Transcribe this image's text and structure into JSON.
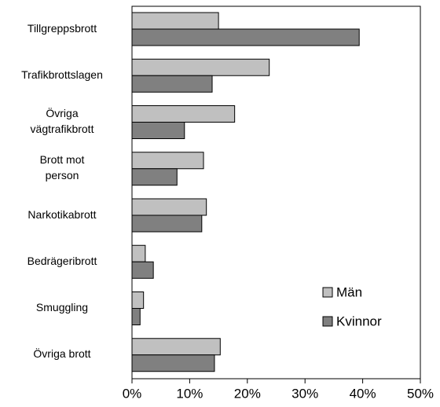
{
  "chart_data": {
    "type": "hbar",
    "categories": [
      "Tillgreppsbrott",
      "Trafikbrottslagen",
      "Övriga\nvägtrafikbrott",
      "Brott mot\nperson",
      "Narkotikabrott",
      "Bedrägeribrott",
      "Smuggling",
      "Övriga brott"
    ],
    "series": [
      {
        "name": "Män",
        "color": "#c0c0c0",
        "values": [
          15,
          23.8,
          17.8,
          12.4,
          12.9,
          2.3,
          2.0,
          15.3
        ]
      },
      {
        "name": "Kvinnor",
        "color": "#808080",
        "values": [
          39.4,
          13.9,
          9.1,
          7.8,
          12.1,
          3.7,
          1.4,
          14.3
        ]
      }
    ],
    "xlim": [
      0,
      50
    ],
    "xticks": [
      {
        "value": 0,
        "label": "0%"
      },
      {
        "value": 10,
        "label": "10%"
      },
      {
        "value": 20,
        "label": "20%"
      },
      {
        "value": 30,
        "label": "30%"
      },
      {
        "value": 40,
        "label": "40%"
      },
      {
        "value": 50,
        "label": "50%"
      }
    ],
    "legend": "lower-right"
  }
}
